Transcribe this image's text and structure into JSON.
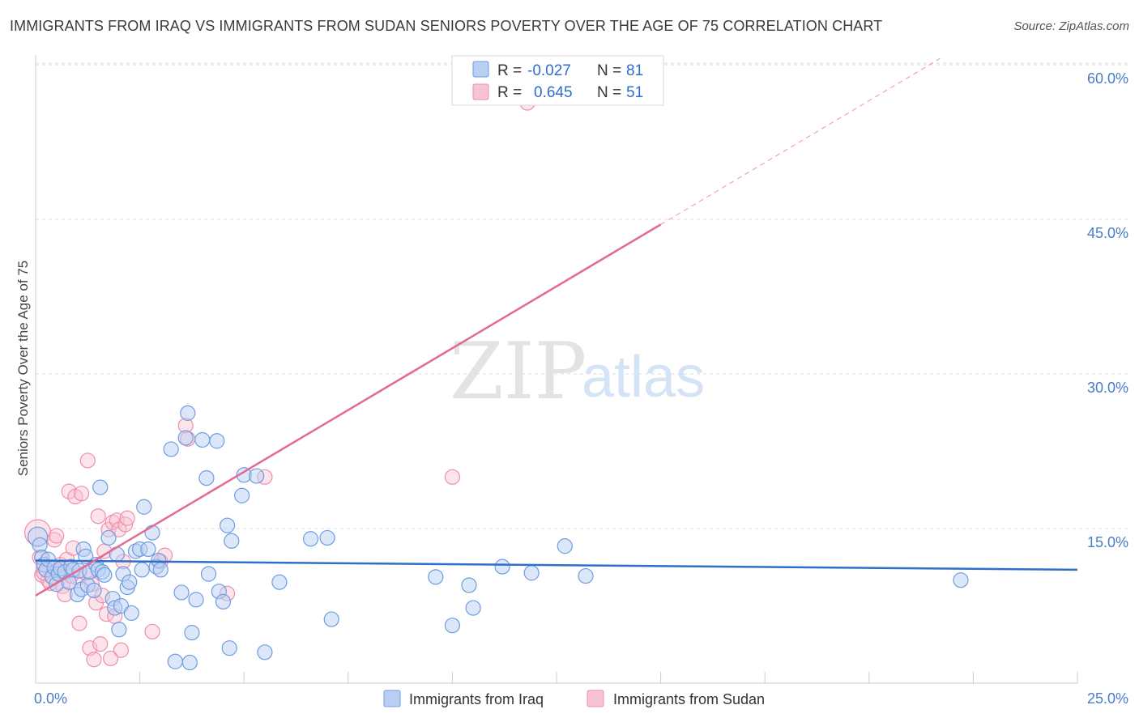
{
  "title": "IMMIGRANTS FROM IRAQ VS IMMIGRANTS FROM SUDAN SENIORS POVERTY OVER THE AGE OF 75 CORRELATION CHART",
  "source": "Source: ZipAtlas.com",
  "watermark": {
    "zip": "ZIP",
    "atlas": "atlas"
  },
  "colors": {
    "iraq_fill": "#b9d0f3",
    "iraq_stroke": "#6e9de0",
    "iraq_line": "#2e6fcb",
    "sudan_fill": "#f8c3d3",
    "sudan_stroke": "#ef8fac",
    "sudan_line": "#e36a93",
    "grid": "#dddddd",
    "tick_label": "#4a7cc8"
  },
  "chart_data": {
    "type": "scatter",
    "xlabel": "",
    "ylabel": "Seniors Poverty Over the Age of 75",
    "xlim": [
      0,
      25
    ],
    "ylim": [
      0,
      61.5
    ],
    "x_ticks": [
      "0.0%",
      "25.0%"
    ],
    "y_ticks": [
      {
        "value": 15,
        "label": "15.0%"
      },
      {
        "value": 30,
        "label": "30.0%"
      },
      {
        "value": 45,
        "label": "45.0%"
      },
      {
        "value": 60,
        "label": "60.0%"
      }
    ],
    "grid": "horizontal-dashed",
    "legend": {
      "placement": "top-center",
      "entries": [
        {
          "r_label": "R =",
          "r_value": "-0.027",
          "n_label": "N =",
          "n_value": "81"
        },
        {
          "r_label": "R =",
          "r_value": "0.645",
          "n_label": "N =",
          "n_value": "51"
        }
      ]
    },
    "bottom_legend": [
      "Immigrants from Iraq",
      "Immigrants from Sudan"
    ],
    "series": [
      {
        "name": "Immigrants from Iraq",
        "trend": {
          "x1": 0,
          "y1": 11.9,
          "x2": 25,
          "y2": 11.0
        },
        "points": [
          [
            0.05,
            14.2
          ],
          [
            0.1,
            13.4
          ],
          [
            0.15,
            12.2
          ],
          [
            0.2,
            11.5
          ],
          [
            0.25,
            11.0
          ],
          [
            0.3,
            12.0
          ],
          [
            0.4,
            10.3
          ],
          [
            0.45,
            11.2
          ],
          [
            0.5,
            9.6
          ],
          [
            0.55,
            10.6
          ],
          [
            0.6,
            11.1
          ],
          [
            0.7,
            10.8
          ],
          [
            0.8,
            9.8
          ],
          [
            0.85,
            11.3
          ],
          [
            0.9,
            11.0
          ],
          [
            1.0,
            8.6
          ],
          [
            1.05,
            10.9
          ],
          [
            1.1,
            9.1
          ],
          [
            1.15,
            13.0
          ],
          [
            1.2,
            12.3
          ],
          [
            1.25,
            9.5
          ],
          [
            1.3,
            10.8
          ],
          [
            1.4,
            9.0
          ],
          [
            1.45,
            11.5
          ],
          [
            1.5,
            11.0
          ],
          [
            1.55,
            19.0
          ],
          [
            1.6,
            10.8
          ],
          [
            1.65,
            10.5
          ],
          [
            1.75,
            14.1
          ],
          [
            1.85,
            8.2
          ],
          [
            1.9,
            7.3
          ],
          [
            1.95,
            12.5
          ],
          [
            2.0,
            5.2
          ],
          [
            2.05,
            7.5
          ],
          [
            2.1,
            10.6
          ],
          [
            2.2,
            9.3
          ],
          [
            2.25,
            9.8
          ],
          [
            2.3,
            6.8
          ],
          [
            2.4,
            12.8
          ],
          [
            2.5,
            13.0
          ],
          [
            2.55,
            11.0
          ],
          [
            2.6,
            17.1
          ],
          [
            2.7,
            13.0
          ],
          [
            2.8,
            14.6
          ],
          [
            2.9,
            11.3
          ],
          [
            2.95,
            11.9
          ],
          [
            3.0,
            11.0
          ],
          [
            3.25,
            22.7
          ],
          [
            3.35,
            2.1
          ],
          [
            3.5,
            8.8
          ],
          [
            3.6,
            23.8
          ],
          [
            3.65,
            26.2
          ],
          [
            3.7,
            2.0
          ],
          [
            3.75,
            4.9
          ],
          [
            3.85,
            8.1
          ],
          [
            4.0,
            23.6
          ],
          [
            4.1,
            19.9
          ],
          [
            4.15,
            10.6
          ],
          [
            4.35,
            23.5
          ],
          [
            4.4,
            8.9
          ],
          [
            4.5,
            7.9
          ],
          [
            4.6,
            15.3
          ],
          [
            4.65,
            3.4
          ],
          [
            4.7,
            13.8
          ],
          [
            4.95,
            18.2
          ],
          [
            5.0,
            20.2
          ],
          [
            5.3,
            20.1
          ],
          [
            5.5,
            3.0
          ],
          [
            5.85,
            9.8
          ],
          [
            6.6,
            14.0
          ],
          [
            7.0,
            14.1
          ],
          [
            7.1,
            6.2
          ],
          [
            9.6,
            10.3
          ],
          [
            10.0,
            5.6
          ],
          [
            10.4,
            9.5
          ],
          [
            10.5,
            7.3
          ],
          [
            11.2,
            11.3
          ],
          [
            11.9,
            10.7
          ],
          [
            12.7,
            13.3
          ],
          [
            13.2,
            10.4
          ],
          [
            22.2,
            10.0
          ]
        ]
      },
      {
        "name": "Immigrants from Sudan",
        "trend": {
          "x1": 0,
          "y1": 8.5,
          "x2": 15.0,
          "y2": 44.5
        },
        "trend_ext": {
          "x1": 15.0,
          "y1": 44.5,
          "x2": 21.7,
          "y2": 60.6
        },
        "points": [
          [
            0.05,
            14.6
          ],
          [
            0.1,
            12.2
          ],
          [
            0.15,
            10.5
          ],
          [
            0.2,
            11.2
          ],
          [
            0.3,
            10.0
          ],
          [
            0.35,
            9.7
          ],
          [
            0.45,
            13.9
          ],
          [
            0.5,
            14.3
          ],
          [
            0.55,
            10.8
          ],
          [
            0.6,
            11.5
          ],
          [
            0.65,
            9.4
          ],
          [
            0.7,
            8.6
          ],
          [
            0.75,
            12.0
          ],
          [
            0.8,
            18.6
          ],
          [
            0.85,
            10.4
          ],
          [
            0.9,
            13.1
          ],
          [
            0.95,
            18.1
          ],
          [
            1.0,
            10.2
          ],
          [
            1.05,
            5.8
          ],
          [
            1.1,
            18.4
          ],
          [
            1.2,
            10.7
          ],
          [
            1.25,
            21.6
          ],
          [
            1.3,
            3.4
          ],
          [
            1.35,
            9.6
          ],
          [
            1.4,
            2.3
          ],
          [
            1.45,
            7.8
          ],
          [
            1.5,
            16.2
          ],
          [
            1.55,
            3.8
          ],
          [
            1.6,
            8.5
          ],
          [
            1.65,
            12.8
          ],
          [
            1.7,
            6.7
          ],
          [
            1.75,
            14.9
          ],
          [
            1.8,
            2.4
          ],
          [
            1.85,
            15.6
          ],
          [
            1.9,
            6.5
          ],
          [
            1.95,
            15.8
          ],
          [
            2.0,
            14.9
          ],
          [
            2.05,
            3.2
          ],
          [
            2.1,
            11.8
          ],
          [
            2.15,
            15.4
          ],
          [
            2.2,
            16.0
          ],
          [
            2.8,
            5.0
          ],
          [
            3.0,
            11.8
          ],
          [
            3.1,
            12.4
          ],
          [
            3.6,
            25.0
          ],
          [
            3.65,
            23.7
          ],
          [
            4.6,
            8.7
          ],
          [
            5.5,
            20.0
          ],
          [
            10.0,
            20.0
          ],
          [
            11.8,
            56.3
          ],
          [
            0.2,
            10.7
          ]
        ]
      }
    ]
  }
}
